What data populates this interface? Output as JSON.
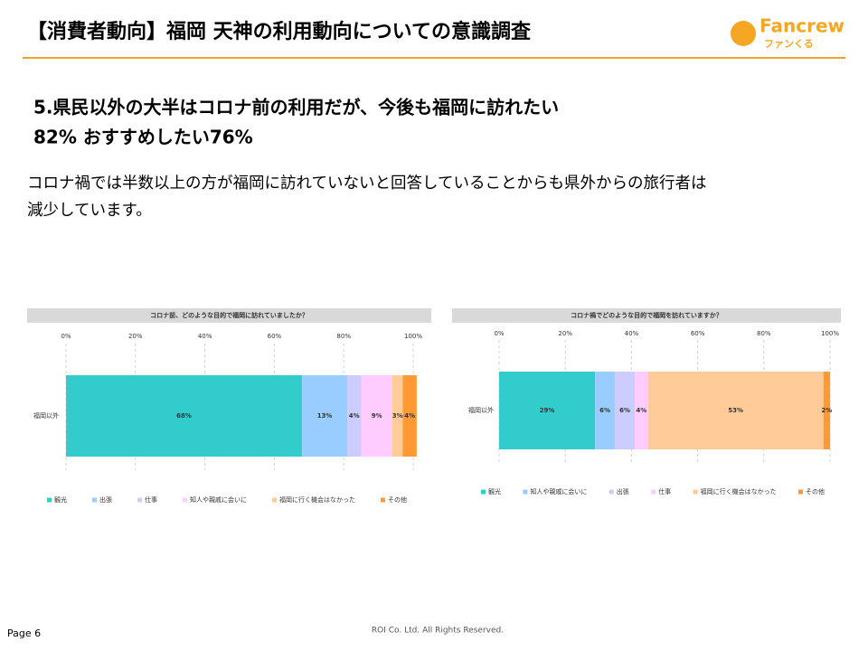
{
  "header": {
    "title": "【消費者動向】福岡 天神の利用動向についての意識調査",
    "logo": "Fancrew",
    "logo_sub": "ファンくる"
  },
  "headline": [
    "5.県民以外の大半はコロナ前の利用だが、今後も福岡に訪れたい",
    "82% おすすめしたい76%"
  ],
  "body": [
    "コロナ禍では半数以上の方が福岡に訪れていないと回答していることからも県外からの旅行者は",
    "減少しています。"
  ],
  "footer": {
    "page": "Page 6",
    "copyright": "ROI Co. Ltd. All Rights Reserved."
  },
  "chart_data": [
    {
      "type": "stacked-bar-horizontal",
      "title": "コロナ前、どのような目的で福岡に訪れていましたか？",
      "categories": [
        "福岡以外"
      ],
      "series": [
        {
          "name": "観光",
          "color": "#33cccc",
          "values": [
            68
          ],
          "value_labels": [
            "68%"
          ]
        },
        {
          "name": "出張",
          "color": "#99ccff",
          "values": [
            13
          ],
          "value_labels": [
            "13%"
          ]
        },
        {
          "name": "仕事",
          "color": "#ccccff",
          "values": [
            4
          ],
          "value_labels": [
            "4%"
          ]
        },
        {
          "name": "知人や親戚に会いに",
          "color": "#ffccff",
          "values": [
            9
          ],
          "value_labels": [
            "9%"
          ]
        },
        {
          "name": "福岡に行く機会はなかった",
          "color": "#ffcc99",
          "values": [
            3
          ],
          "value_labels": [
            "3%"
          ]
        },
        {
          "name": "その他",
          "color": "#ff9933",
          "values": [
            4
          ],
          "value_labels": [
            "4%"
          ]
        }
      ],
      "xlim": [
        0,
        100
      ],
      "xticks": [
        {
          "value": 0,
          "label": "0%"
        },
        {
          "value": 20,
          "label": "20%"
        },
        {
          "value": 40,
          "label": "40%"
        },
        {
          "value": 60,
          "label": "60%"
        },
        {
          "value": 80,
          "label": "80%"
        },
        {
          "value": 100,
          "label": "100%"
        }
      ],
      "grid": true,
      "legend": "bottom"
    },
    {
      "type": "stacked-bar-horizontal",
      "title": "コロナ禍でどのような目的で福岡を訪れていますか？",
      "categories": [
        "福岡以外"
      ],
      "series": [
        {
          "name": "観光",
          "color": "#33cccc",
          "values": [
            29
          ],
          "value_labels": [
            "29%"
          ]
        },
        {
          "name": "知人や親戚に会いに",
          "color": "#99ccff",
          "values": [
            6
          ],
          "value_labels": [
            "6%"
          ]
        },
        {
          "name": "出張",
          "color": "#ccccff",
          "values": [
            6
          ],
          "value_labels": [
            "6%"
          ]
        },
        {
          "name": "仕事",
          "color": "#ffccff",
          "values": [
            4
          ],
          "value_labels": [
            "4%"
          ]
        },
        {
          "name": "福岡に行く機会はなかった",
          "color": "#ffcc99",
          "values": [
            53
          ],
          "value_labels": [
            "53%"
          ]
        },
        {
          "name": "その他",
          "color": "#ff9933",
          "values": [
            2
          ],
          "value_labels": [
            "2%"
          ]
        }
      ],
      "xlim": [
        0,
        100
      ],
      "xticks": [
        {
          "value": 0,
          "label": "0%"
        },
        {
          "value": 20,
          "label": "20%"
        },
        {
          "value": 40,
          "label": "40%"
        },
        {
          "value": 60,
          "label": "60%"
        },
        {
          "value": 80,
          "label": "80%"
        },
        {
          "value": 100,
          "label": "100%"
        }
      ],
      "grid": true,
      "legend": "bottom"
    }
  ]
}
